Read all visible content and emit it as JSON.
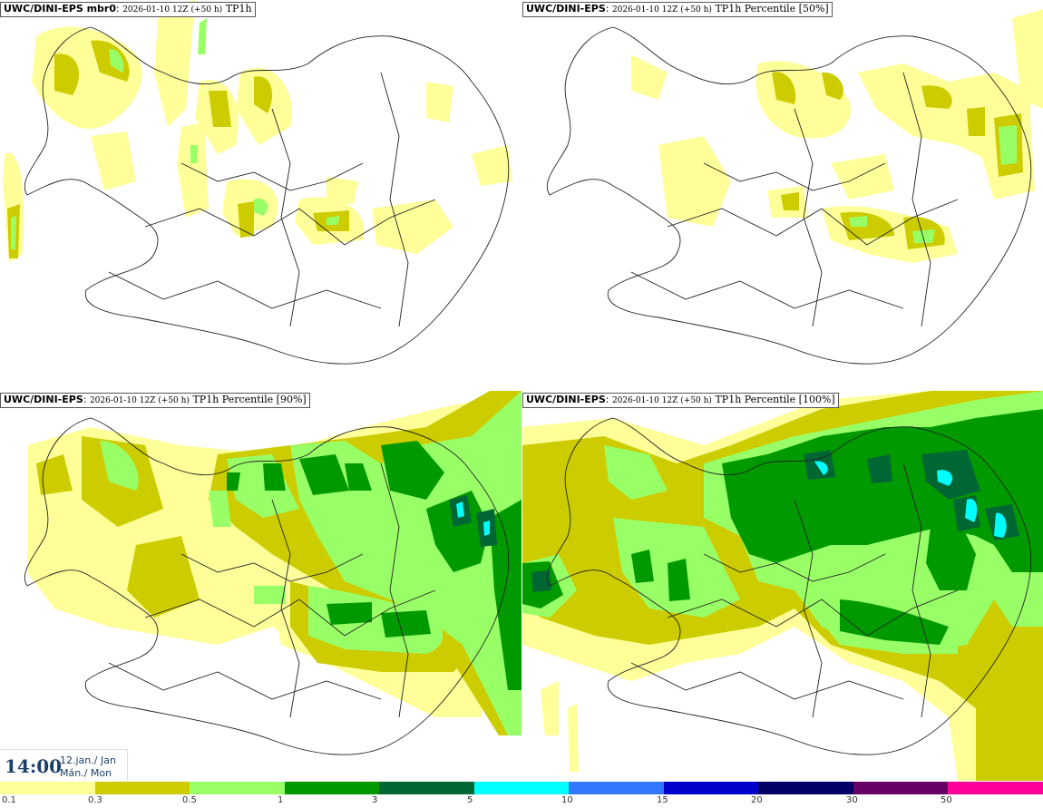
{
  "panels": [
    {
      "model": "UWC/DINI-EPS mbr0",
      "run": "2026-01-10 12Z (+50 h)",
      "variable": "TP1h"
    },
    {
      "model": "UWC/DINI-EPS",
      "run": "2026-01-10 12Z (+50 h)",
      "variable": "TP1h Percentile [50%]"
    },
    {
      "model": "UWC/DINI-EPS",
      "run": "2026-01-10 12Z (+50 h)",
      "variable": "TP1h Percentile [90%]"
    },
    {
      "model": "UWC/DINI-EPS",
      "run": "2026-01-10 12Z (+50 h)",
      "variable": "TP1h Percentile [100%]"
    }
  ],
  "valid": {
    "time": "14:00",
    "date_line1": "12.jan./ Jan",
    "date_line2": "Mán./ Mon"
  },
  "legend": {
    "colors": [
      "#ffff99",
      "#cccc00",
      "#99ff66",
      "#009900",
      "#006633",
      "#00ffff",
      "#3377ff",
      "#0000cc",
      "#000066",
      "#660066",
      "#ff0099",
      "#ff0000",
      "#ff0000"
    ],
    "ticks": [
      "0.1",
      "0.3",
      "0.5",
      "1",
      "3",
      "5",
      "10",
      "15",
      "20",
      "30",
      "50"
    ]
  }
}
